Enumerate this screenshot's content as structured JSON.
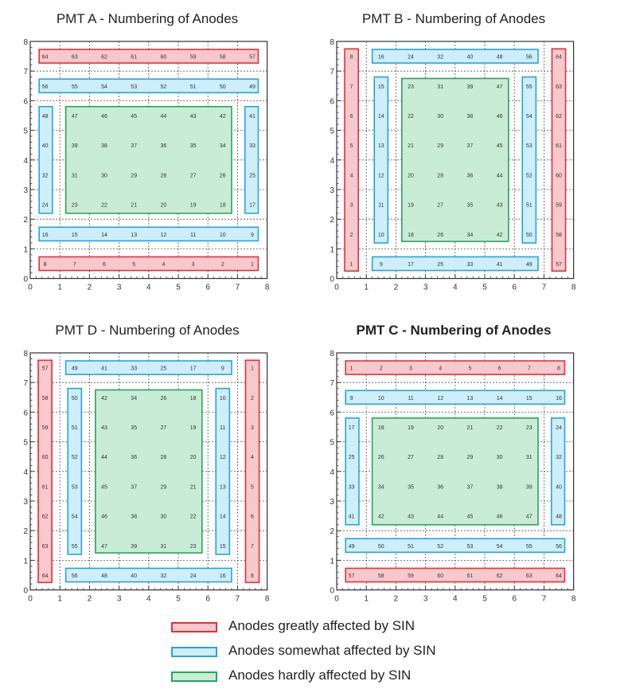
{
  "colors": {
    "red_fill": "#f8c9cc",
    "red_stroke": "#e5303a",
    "blue_fill": "#cdeefa",
    "blue_stroke": "#2aa3dc",
    "green_fill": "#c9ecd6",
    "green_stroke": "#2aa45a"
  },
  "axis": {
    "min": 0,
    "max": 8,
    "ticks": [
      "0",
      "1",
      "2",
      "3",
      "4",
      "5",
      "6",
      "7",
      "8"
    ]
  },
  "panels": [
    {
      "id": "A",
      "title": "PMT A - Numbering of Anodes",
      "bold": false,
      "grid": [
        [
          "64",
          "63",
          "62",
          "61",
          "60",
          "59",
          "58",
          "57"
        ],
        [
          "56",
          "55",
          "54",
          "53",
          "52",
          "51",
          "50",
          "49"
        ],
        [
          "48",
          "47",
          "46",
          "45",
          "44",
          "43",
          "42",
          "41"
        ],
        [
          "40",
          "39",
          "38",
          "37",
          "36",
          "35",
          "34",
          "33"
        ],
        [
          "32",
          "31",
          "30",
          "29",
          "28",
          "27",
          "26",
          "25"
        ],
        [
          "24",
          "23",
          "22",
          "21",
          "20",
          "19",
          "18",
          "17"
        ],
        [
          "16",
          "15",
          "14",
          "13",
          "12",
          "11",
          "10",
          "9"
        ],
        [
          "8",
          "7",
          "6",
          "5",
          "4",
          "3",
          "2",
          "1"
        ]
      ]
    },
    {
      "id": "B",
      "title": "PMT B - Numbering of Anodes",
      "bold": false,
      "grid": [
        [
          "8",
          "16",
          "24",
          "32",
          "40",
          "48",
          "56",
          "64"
        ],
        [
          "7",
          "15",
          "23",
          "31",
          "39",
          "47",
          "55",
          "63"
        ],
        [
          "6",
          "14",
          "22",
          "30",
          "38",
          "46",
          "54",
          "62"
        ],
        [
          "5",
          "13",
          "21",
          "29",
          "37",
          "45",
          "53",
          "61"
        ],
        [
          "4",
          "12",
          "20",
          "28",
          "36",
          "44",
          "52",
          "60"
        ],
        [
          "3",
          "11",
          "19",
          "27",
          "35",
          "43",
          "51",
          "59"
        ],
        [
          "2",
          "10",
          "18",
          "26",
          "34",
          "42",
          "50",
          "58"
        ],
        [
          "1",
          "9",
          "17",
          "25",
          "33",
          "41",
          "49",
          "57"
        ]
      ]
    },
    {
      "id": "D",
      "title": "PMT D - Numbering of Anodes",
      "bold": false,
      "grid": [
        [
          "57",
          "49",
          "41",
          "33",
          "25",
          "17",
          "9",
          "1"
        ],
        [
          "58",
          "50",
          "42",
          "34",
          "26",
          "18",
          "10",
          "2"
        ],
        [
          "59",
          "51",
          "43",
          "35",
          "27",
          "19",
          "11",
          "3"
        ],
        [
          "60",
          "52",
          "44",
          "36",
          "28",
          "20",
          "12",
          "4"
        ],
        [
          "61",
          "53",
          "45",
          "37",
          "29",
          "21",
          "13",
          "5"
        ],
        [
          "62",
          "54",
          "46",
          "38",
          "30",
          "22",
          "14",
          "6"
        ],
        [
          "63",
          "55",
          "47",
          "39",
          "31",
          "23",
          "15",
          "7"
        ],
        [
          "64",
          "56",
          "48",
          "40",
          "32",
          "24",
          "16",
          "8"
        ]
      ]
    },
    {
      "id": "C",
      "title": "PMT C - Numbering of Anodes",
      "bold": true,
      "grid": [
        [
          "1",
          "2",
          "3",
          "4",
          "5",
          "6",
          "7",
          "8"
        ],
        [
          "9",
          "10",
          "11",
          "12",
          "13",
          "14",
          "15",
          "16"
        ],
        [
          "17",
          "18",
          "19",
          "20",
          "21",
          "22",
          "23",
          "24"
        ],
        [
          "25",
          "26",
          "27",
          "28",
          "29",
          "30",
          "31",
          "32"
        ],
        [
          "33",
          "34",
          "35",
          "36",
          "37",
          "38",
          "39",
          "40"
        ],
        [
          "41",
          "42",
          "43",
          "44",
          "45",
          "46",
          "47",
          "48"
        ],
        [
          "49",
          "50",
          "51",
          "52",
          "53",
          "54",
          "55",
          "56"
        ],
        [
          "57",
          "58",
          "59",
          "60",
          "61",
          "62",
          "63",
          "64"
        ]
      ]
    }
  ],
  "legend": [
    {
      "label": "Anodes greatly affected by SIN",
      "color": "red"
    },
    {
      "label": "Anodes somewhat affected by SIN",
      "color": "blue"
    },
    {
      "label": "Anodes hardly affected by SIN",
      "color": "green"
    }
  ]
}
